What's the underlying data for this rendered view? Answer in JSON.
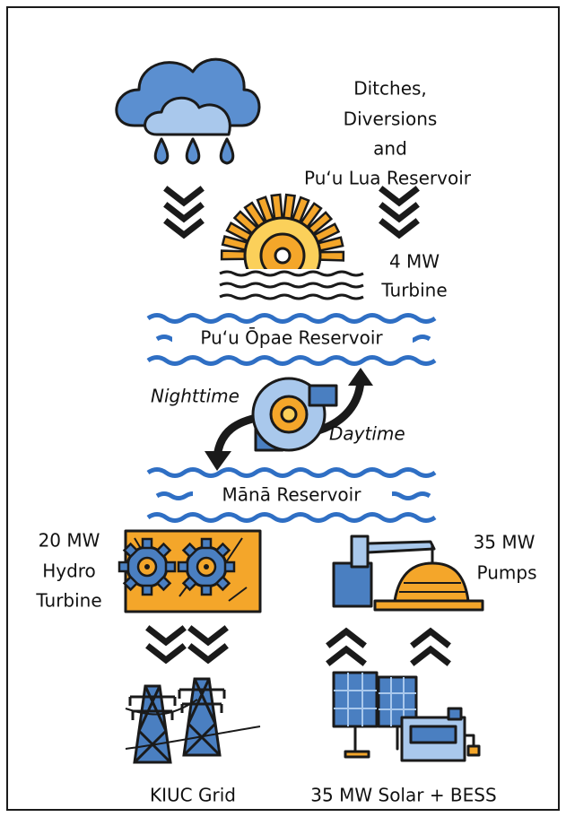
{
  "source": {
    "lines": [
      "Ditches,",
      "Diversions",
      "and",
      "Pu‘u Lua Reservoir"
    ]
  },
  "upper_turbine": {
    "lines": [
      "4 MW",
      "Turbine"
    ]
  },
  "upper_reservoir": {
    "label": "Pu‘u Ōpae Reservoir"
  },
  "pump_turbine": {
    "night": "Nighttime",
    "day": "Daytime"
  },
  "lower_reservoir": {
    "label": "Mānā Reservoir"
  },
  "hydro": {
    "lines": [
      "20 MW",
      "Hydro",
      "Turbine"
    ]
  },
  "pumps": {
    "lines": [
      "35 MW",
      "Pumps"
    ]
  },
  "grid": {
    "label": "KIUC Grid"
  },
  "solar": {
    "label": "35 MW Solar + BESS"
  }
}
